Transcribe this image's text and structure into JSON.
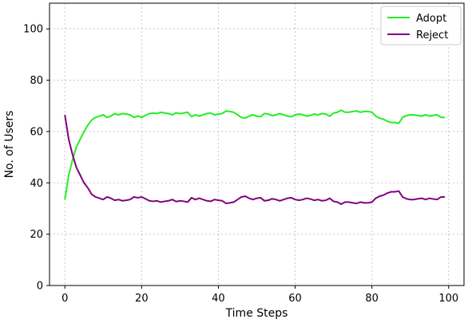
{
  "chart_data": {
    "type": "line",
    "title": "",
    "xlabel": "Time Steps",
    "ylabel": "No. of Users",
    "xlim": [
      -4,
      104
    ],
    "ylim": [
      0,
      110
    ],
    "xticks": [
      0,
      20,
      40,
      60,
      80,
      100
    ],
    "yticks": [
      0,
      20,
      40,
      60,
      80,
      100
    ],
    "grid": true,
    "legend_position": "top-right",
    "x": [
      0,
      1,
      2,
      3,
      4,
      5,
      6,
      7,
      8,
      9,
      10,
      11,
      12,
      13,
      14,
      15,
      16,
      17,
      18,
      19,
      20,
      21,
      22,
      23,
      24,
      25,
      26,
      27,
      28,
      29,
      30,
      31,
      32,
      33,
      34,
      35,
      36,
      37,
      38,
      39,
      40,
      41,
      42,
      43,
      44,
      45,
      46,
      47,
      48,
      49,
      50,
      51,
      52,
      53,
      54,
      55,
      56,
      57,
      58,
      59,
      60,
      61,
      62,
      63,
      64,
      65,
      66,
      67,
      68,
      69,
      70,
      71,
      72,
      73,
      74,
      75,
      76,
      77,
      78,
      79,
      80,
      81,
      82,
      83,
      84,
      85,
      86,
      87,
      88,
      89,
      90,
      91,
      92,
      93,
      94,
      95,
      96,
      97,
      98,
      99
    ],
    "series": [
      {
        "name": "Adopt",
        "color": "#22ee22",
        "values": [
          33.5,
          43,
          49,
          54,
          57,
          60,
          62.5,
          64.5,
          65.5,
          66,
          66.5,
          65.5,
          66,
          67,
          66.5,
          67,
          66.8,
          66.5,
          65.5,
          66,
          65.5,
          66.3,
          67,
          67.2,
          67,
          67.5,
          67.2,
          67,
          66.5,
          67.3,
          67,
          67.2,
          67.5,
          65.8,
          66.5,
          66,
          66.5,
          67,
          67.2,
          66.5,
          66.8,
          67,
          68,
          67.8,
          67.5,
          66.5,
          65.5,
          65.2,
          66,
          66.5,
          66,
          65.8,
          67,
          66.8,
          66.2,
          66.5,
          67,
          66.5,
          66,
          65.8,
          66.5,
          66.8,
          66.5,
          66,
          66.3,
          66.8,
          66.5,
          67,
          66.8,
          66,
          67.2,
          67.5,
          68.3,
          67.5,
          67.5,
          67.8,
          68,
          67.5,
          67.8,
          67.8,
          67.5,
          66,
          65.2,
          64.8,
          64,
          63.5,
          63.5,
          63.2,
          65.5,
          66.2,
          66.5,
          66.5,
          66.2,
          66,
          66.5,
          66,
          66.3,
          66.5,
          65.5,
          65.5
        ]
      },
      {
        "name": "Reject",
        "color": "#800080",
        "values": [
          66.5,
          57,
          51,
          46,
          43,
          40,
          38,
          35.5,
          34.5,
          34,
          33.5,
          34.5,
          34,
          33.2,
          33.5,
          33,
          33.2,
          33.5,
          34.5,
          34.2,
          34.5,
          33.8,
          33,
          32.8,
          33,
          32.5,
          32.8,
          33,
          33.5,
          32.7,
          33,
          32.8,
          32.5,
          34.2,
          33.5,
          34,
          33.5,
          33,
          32.8,
          33.5,
          33.2,
          33,
          32,
          32.2,
          32.5,
          33.5,
          34.5,
          34.8,
          34,
          33.5,
          34,
          34.2,
          33,
          33.2,
          33.8,
          33.5,
          33,
          33.5,
          34,
          34.2,
          33.5,
          33.2,
          33.5,
          34,
          33.7,
          33.2,
          33.5,
          33,
          33.2,
          34,
          32.8,
          32.5,
          31.7,
          32.5,
          32.5,
          32.2,
          32,
          32.5,
          32.2,
          32.2,
          32.5,
          34,
          34.8,
          35.2,
          36,
          36.5,
          36.5,
          36.8,
          34.5,
          33.8,
          33.5,
          33.5,
          33.8,
          34,
          33.5,
          34,
          33.7,
          33.5,
          34.5,
          34.5
        ]
      }
    ]
  }
}
